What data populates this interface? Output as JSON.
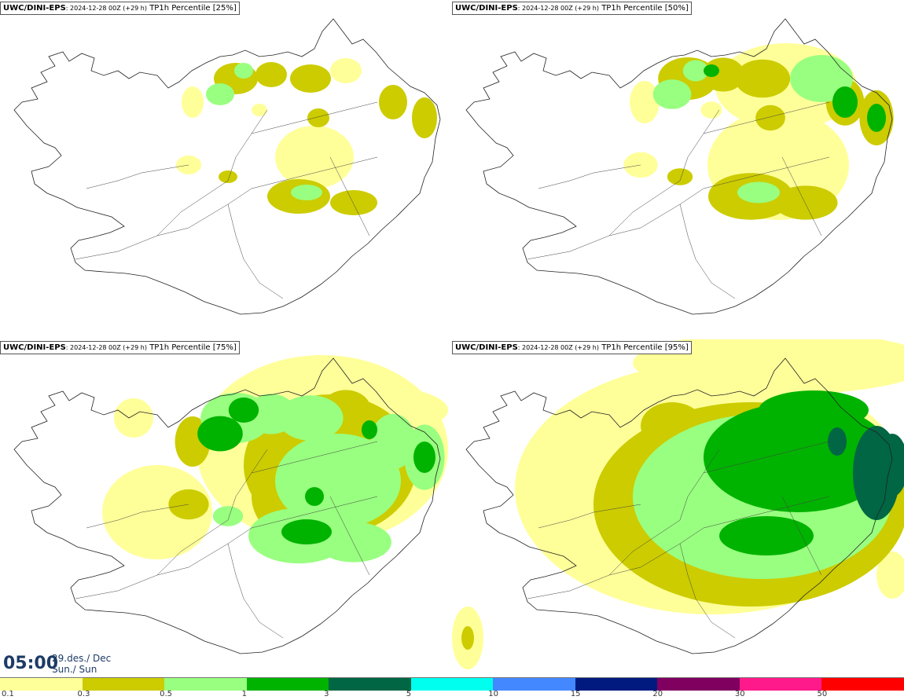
{
  "panels": [
    {
      "model": "UWC/DINI-EPS",
      "run": "2024-12-28 00Z (+29 h)",
      "field": "TP1h Percentile [25%]",
      "level": 1
    },
    {
      "model": "UWC/DINI-EPS",
      "run": "2024-12-28 00Z (+29 h)",
      "field": "TP1h Percentile [50%]",
      "level": 2
    },
    {
      "model": "UWC/DINI-EPS",
      "run": "2024-12-28 00Z (+29 h)",
      "field": "TP1h Percentile [75%]",
      "level": 3
    },
    {
      "model": "UWC/DINI-EPS",
      "run": "2024-12-28 00Z (+29 h)",
      "field": "TP1h Percentile [95%]",
      "level": 4
    }
  ],
  "valid_time": {
    "time": "05:00",
    "date": "29.des./ Dec",
    "day": "Sun./ Sun"
  },
  "legend": {
    "colors": [
      "#ffff99",
      "#cccc00",
      "#99ff80",
      "#00b300",
      "#006644",
      "#00ffee",
      "#4488ff",
      "#001a80",
      "#800060",
      "#ff1a8c",
      "#ff0000"
    ],
    "labels": [
      "0.1",
      "0.3",
      "0.5",
      "1",
      "3",
      "5",
      "10",
      "15",
      "20",
      "30",
      "50"
    ]
  }
}
